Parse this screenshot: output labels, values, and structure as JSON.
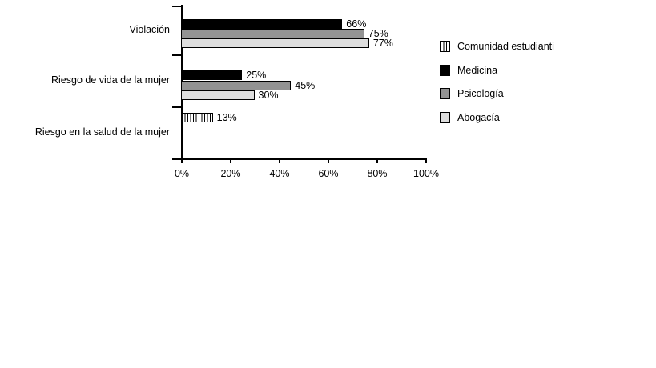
{
  "chart_data": {
    "type": "bar",
    "orientation": "horizontal",
    "title": "",
    "categories": [
      "Violación",
      "Riesgo de vida de la mujer",
      "Riesgo en la salud de la mujer"
    ],
    "series": [
      {
        "name": "Comunidad estudianti",
        "fill": "striped",
        "values": [
          null,
          null,
          13
        ]
      },
      {
        "name": "Medicina",
        "fill": "#000000",
        "values": [
          66,
          25,
          null
        ]
      },
      {
        "name": "Psicología",
        "fill": "#939393",
        "values": [
          75,
          45,
          null
        ]
      },
      {
        "name": "Abogacía",
        "fill": "#dedede",
        "values": [
          77,
          30,
          null
        ]
      }
    ],
    "value_suffix": "%",
    "x_ticks": [
      "0%",
      "20%",
      "40%",
      "60%",
      "80%",
      "100%"
    ],
    "xlim": [
      0,
      100
    ],
    "grid": false,
    "legend_position": "right",
    "colors": {
      "axis": "#000000",
      "text": "#000000",
      "background": "#ffffff"
    }
  }
}
